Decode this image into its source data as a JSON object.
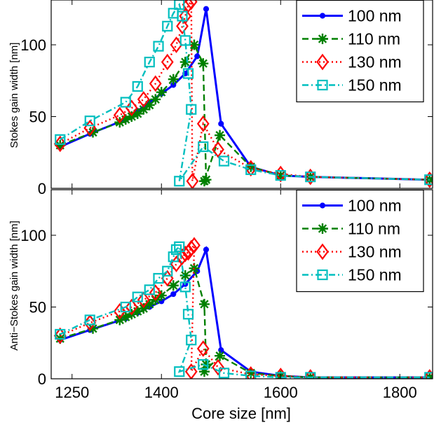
{
  "chart_data": [
    {
      "type": "line",
      "ylabel": "Stokes gain width [nm]",
      "xlabel": "",
      "xlim": [
        1215,
        1855
      ],
      "ylim": [
        0,
        135
      ],
      "yticks": [
        0,
        50,
        100
      ],
      "xticks": [],
      "legend": "top-right",
      "grid": false,
      "series": [
        {
          "name": "100 nm",
          "color": "#0000ff",
          "dash": "solid",
          "marker": "dot",
          "x": [
            1230,
            1280,
            1340,
            1360,
            1380,
            1400,
            1420,
            1440,
            1460,
            1475,
            1500,
            1550,
            1600,
            1650,
            1850
          ],
          "y": [
            29,
            38,
            48,
            54,
            60,
            66,
            72,
            80,
            92,
            125,
            45,
            15,
            9,
            8,
            6
          ]
        },
        {
          "name": "110 nm",
          "color": "#008000",
          "dash": "dashed",
          "marker": "asterisk",
          "x": [
            1230,
            1285,
            1330,
            1340,
            1350,
            1360,
            1370,
            1380,
            1390,
            1400,
            1420,
            1440,
            1455,
            1470,
            1475,
            1472,
            1498,
            1550,
            1600,
            1650,
            1850
          ],
          "y": [
            30,
            39,
            46,
            48,
            50,
            52,
            55,
            58,
            62,
            67,
            76,
            88,
            100,
            87,
            6,
            5,
            37,
            15,
            9,
            8,
            6
          ]
        },
        {
          "name": "130 nm",
          "color": "#ff0000",
          "dash": "dotted",
          "marker": "diamond",
          "x": [
            1230,
            1280,
            1330,
            1350,
            1370,
            1390,
            1410,
            1425,
            1435,
            1440,
            1445,
            1450,
            1452,
            1470,
            1495,
            1550,
            1600,
            1650,
            1850
          ],
          "y": [
            31,
            42,
            51,
            56,
            62,
            73,
            88,
            100,
            113,
            120,
            128,
            130,
            5,
            45,
            27,
            14,
            10,
            8,
            6
          ]
        },
        {
          "name": "150 nm",
          "color": "#00bfbf",
          "dash": "dashdot",
          "marker": "square",
          "x": [
            1230,
            1280,
            1340,
            1360,
            1380,
            1395,
            1410,
            1420,
            1430,
            1435,
            1440,
            1445,
            1450,
            1430,
            1470,
            1505,
            1550,
            1600,
            1650,
            1850
          ],
          "y": [
            34,
            47,
            60,
            71,
            88,
            99,
            113,
            122,
            128,
            120,
            103,
            80,
            55,
            5,
            29,
            19,
            13,
            9,
            8,
            6
          ]
        }
      ]
    },
    {
      "type": "line",
      "ylabel": "Anti−Stokes gain width [nm]",
      "xlabel": "Core size [nm]",
      "xlim": [
        1215,
        1855
      ],
      "ylim": [
        0,
        135
      ],
      "yticks": [
        0,
        50,
        100
      ],
      "xticks": [
        1250,
        1400,
        1600,
        1800
      ],
      "legend": "top-right",
      "grid": false,
      "series": [
        {
          "name": "100 nm",
          "color": "#0000ff",
          "dash": "solid",
          "marker": "dot",
          "x": [
            1230,
            1280,
            1340,
            1360,
            1380,
            1400,
            1420,
            1440,
            1460,
            1475,
            1500,
            1550,
            1600,
            1650,
            1850
          ],
          "y": [
            27,
            34,
            42,
            46,
            50,
            54,
            59,
            66,
            75,
            90,
            20,
            5,
            2,
            1,
            1
          ]
        },
        {
          "name": "110 nm",
          "color": "#008000",
          "dash": "dashed",
          "marker": "asterisk",
          "x": [
            1230,
            1285,
            1330,
            1340,
            1350,
            1360,
            1370,
            1380,
            1390,
            1400,
            1420,
            1440,
            1455,
            1472,
            1475,
            1472,
            1498,
            1550,
            1600,
            1650,
            1850
          ],
          "y": [
            28,
            35,
            41,
            43,
            45,
            47,
            49,
            52,
            55,
            58,
            65,
            72,
            77,
            52,
            10,
            5,
            16,
            4,
            2,
            1,
            1
          ]
        },
        {
          "name": "130 nm",
          "color": "#ff0000",
          "dash": "dotted",
          "marker": "diamond",
          "x": [
            1230,
            1280,
            1330,
            1350,
            1370,
            1390,
            1410,
            1425,
            1435,
            1440,
            1445,
            1450,
            1455,
            1450,
            1470,
            1495,
            1550,
            1600,
            1650,
            1850
          ],
          "y": [
            30,
            39,
            47,
            50,
            55,
            60,
            70,
            80,
            85,
            87,
            88,
            91,
            93,
            5,
            21,
            8,
            3,
            2,
            1,
            1
          ]
        },
        {
          "name": "150 nm",
          "color": "#00bfbf",
          "dash": "dashdot",
          "marker": "square",
          "x": [
            1230,
            1280,
            1340,
            1360,
            1380,
            1395,
            1410,
            1420,
            1425,
            1430,
            1440,
            1445,
            1450,
            1430,
            1470,
            1505,
            1550,
            1600,
            1650,
            1850
          ],
          "y": [
            31,
            41,
            50,
            57,
            62,
            70,
            75,
            85,
            90,
            92,
            64,
            45,
            27,
            5,
            10,
            4,
            2,
            1,
            1,
            1
          ]
        }
      ]
    }
  ]
}
